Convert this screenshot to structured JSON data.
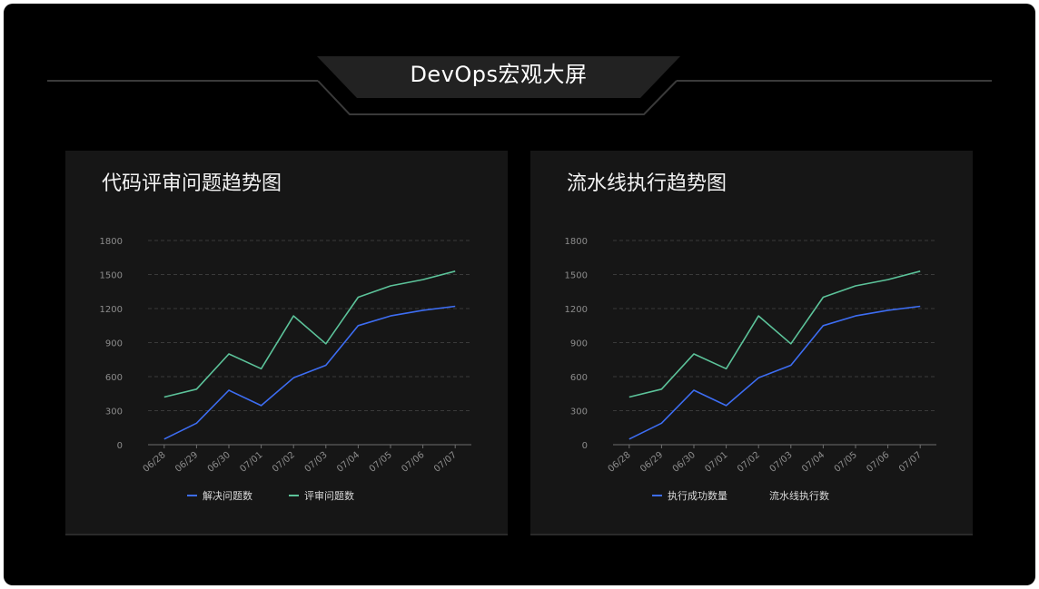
{
  "page": {
    "title": "DevOps宏观大屏"
  },
  "colors": {
    "background": "#000000",
    "panel": "#161616",
    "blue": "#3d6df2",
    "green": "#5cc39a",
    "grid": "#3a3a3a",
    "axis_text": "#8c8c8c"
  },
  "panels": [
    {
      "title": "代码评审问题趋势图",
      "legend": [
        {
          "label": "解决问题数",
          "color": "#3d6df2"
        },
        {
          "label": "评审问题数",
          "color": "#5cc39a"
        }
      ]
    },
    {
      "title": "流水线执行趋势图",
      "legend": [
        {
          "label": "执行成功数量",
          "color": "#3d6df2"
        },
        {
          "label": "流水线执行数",
          "color": "#5cc39a"
        }
      ]
    }
  ],
  "chart_data": [
    {
      "type": "line",
      "title": "代码评审问题趋势图",
      "xlabel": "",
      "ylabel": "",
      "categories": [
        "06/28",
        "06/29",
        "06/30",
        "07/01",
        "07/02",
        "07/03",
        "07/04",
        "07/05",
        "07/06",
        "07/07"
      ],
      "yticks": [
        0,
        300,
        600,
        900,
        1200,
        1500,
        1800
      ],
      "ylim": [
        0,
        1800
      ],
      "grid": true,
      "legend_position": "bottom",
      "series": [
        {
          "name": "解决问题数",
          "color": "#3d6df2",
          "values": [
            50,
            190,
            480,
            345,
            590,
            700,
            1050,
            1135,
            1185,
            1220
          ],
          "show_swatch": true
        },
        {
          "name": "评审问题数",
          "color": "#5cc39a",
          "values": [
            420,
            490,
            800,
            670,
            1135,
            890,
            1300,
            1400,
            1455,
            1530
          ],
          "show_swatch": true
        }
      ]
    },
    {
      "type": "line",
      "title": "流水线执行趋势图",
      "xlabel": "",
      "ylabel": "",
      "categories": [
        "06/28",
        "06/29",
        "06/30",
        "07/01",
        "07/02",
        "07/03",
        "07/04",
        "07/05",
        "07/06",
        "07/07"
      ],
      "yticks": [
        0,
        300,
        600,
        900,
        1200,
        1500,
        1800
      ],
      "ylim": [
        0,
        1800
      ],
      "grid": true,
      "legend_position": "bottom",
      "series": [
        {
          "name": "执行成功数量",
          "color": "#3d6df2",
          "values": [
            50,
            190,
            480,
            345,
            590,
            700,
            1050,
            1135,
            1185,
            1220
          ],
          "show_swatch": true
        },
        {
          "name": "流水线执行数",
          "color": "#5cc39a",
          "values": [
            420,
            490,
            800,
            670,
            1135,
            890,
            1300,
            1400,
            1455,
            1530
          ],
          "show_swatch": false
        }
      ]
    }
  ]
}
